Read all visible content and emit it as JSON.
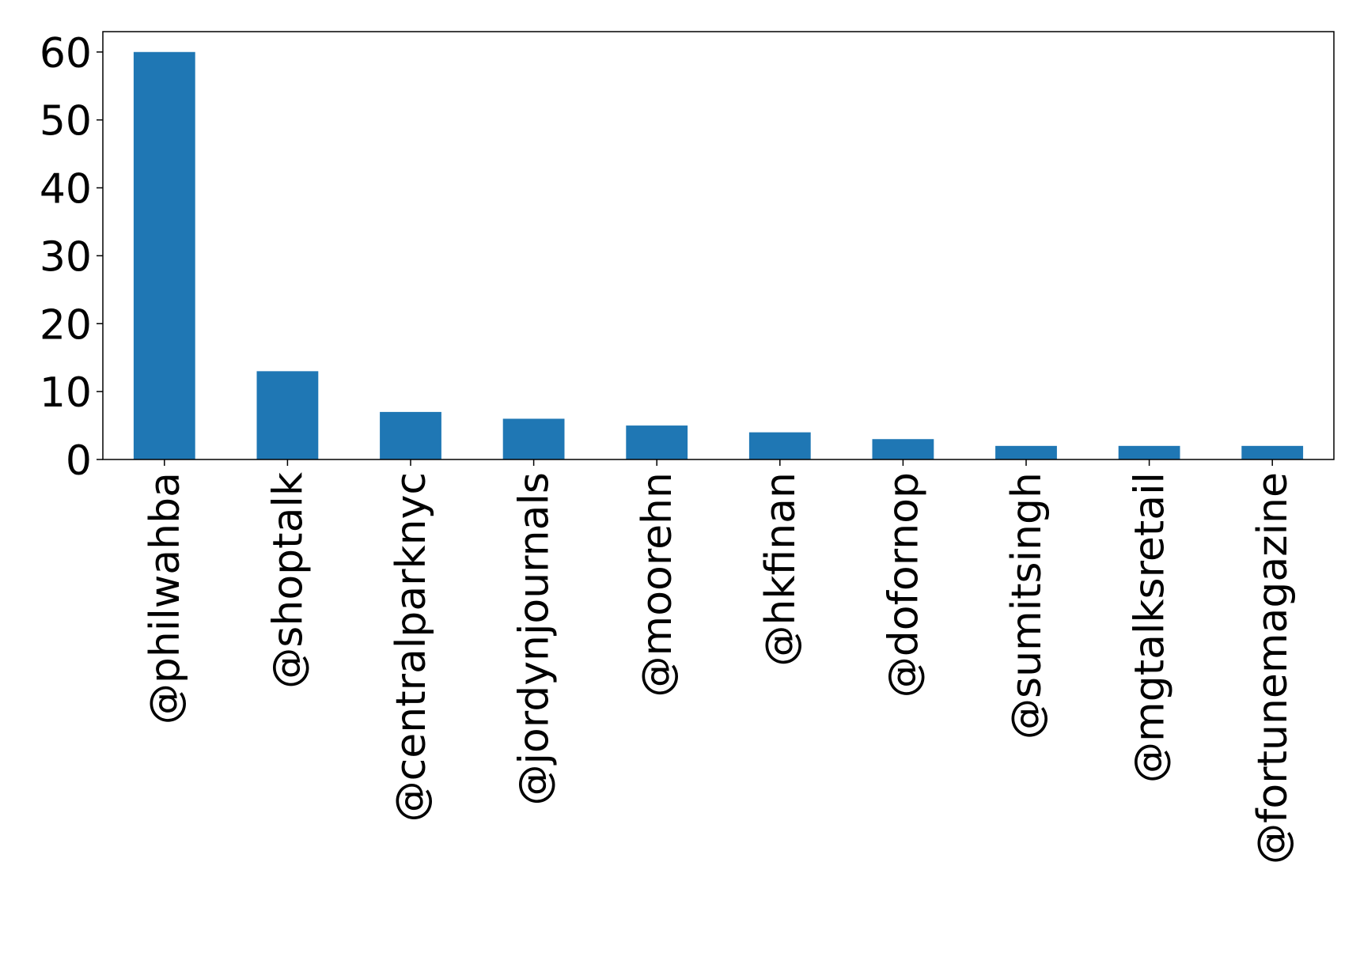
{
  "chart_data": {
    "type": "bar",
    "title": "",
    "xlabel": "",
    "ylabel": "",
    "categories": [
      "@philwahba",
      "@shoptalk",
      "@centralparknyc",
      "@jordynjournals",
      "@moorehn",
      "@hkfinan",
      "@dofornop",
      "@sumitsingh",
      "@mgtalksretail",
      "@fortunemagazine"
    ],
    "values": [
      60,
      13,
      7,
      6,
      5,
      4,
      3,
      2,
      2,
      2
    ],
    "ylim": [
      0,
      63
    ],
    "yticks": [
      0,
      10,
      20,
      30,
      40,
      50,
      60
    ],
    "grid": false,
    "legend": "none",
    "bar_color": "#1f77b4"
  }
}
